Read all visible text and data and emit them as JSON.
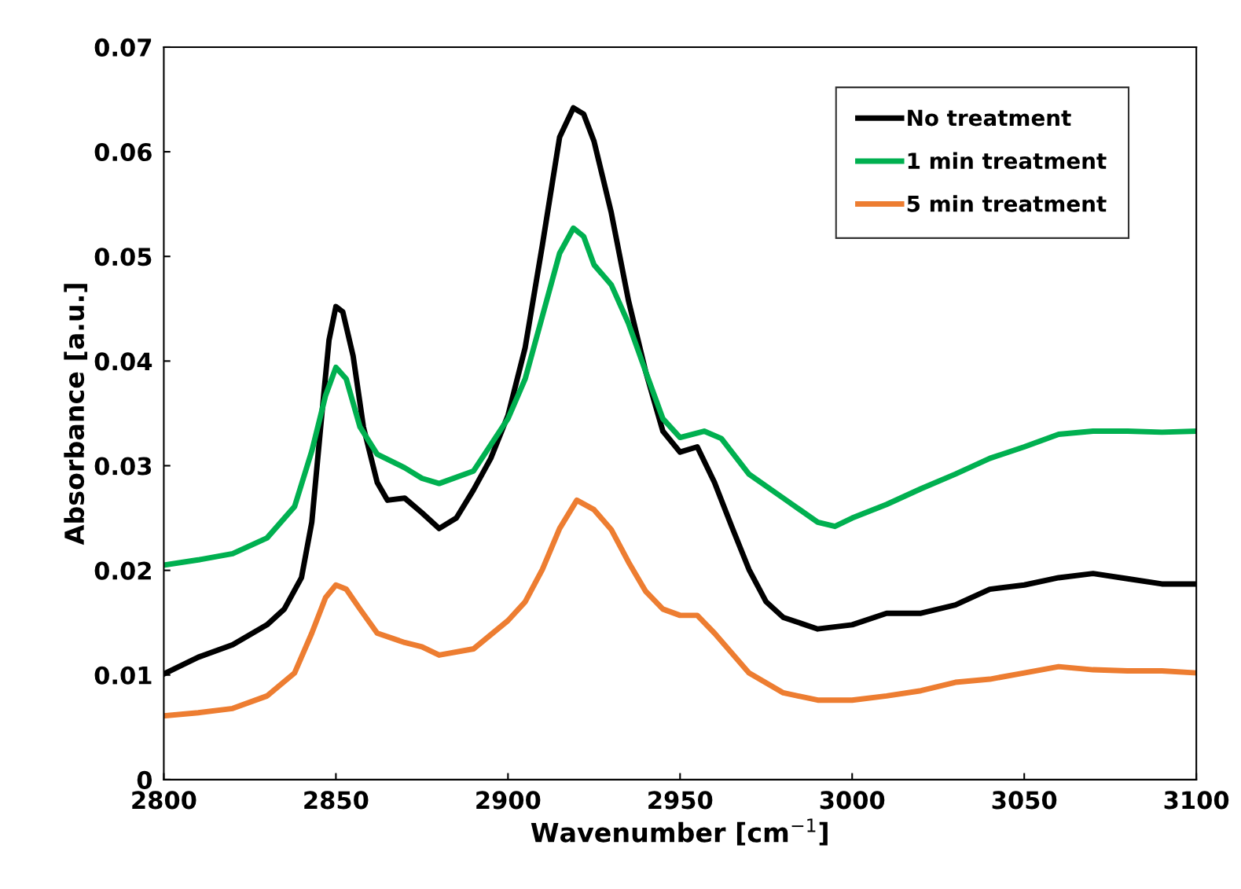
{
  "chart_data": {
    "type": "line",
    "xlabel": "Wavenumber [cm$^{−1}$]",
    "ylabel": "Absorbance [a.u.]",
    "xlim": [
      2800,
      3100
    ],
    "xticks": [
      2800,
      2850,
      2900,
      2950,
      3000,
      3050,
      3100
    ],
    "ylim": [
      0,
      0.07
    ],
    "yticks": [
      0,
      0.01,
      0.02,
      0.03,
      0.04,
      0.05,
      0.06,
      0.07
    ],
    "grid": false,
    "legend": "top right",
    "marker": "none",
    "line_style": "solid",
    "series": [
      {
        "name": "No treatment",
        "color": "#000000",
        "x": [
          2800,
          2810,
          2820,
          2830,
          2835,
          2840,
          2843,
          2846,
          2848,
          2850,
          2852,
          2855,
          2858,
          2862,
          2865,
          2870,
          2875,
          2880,
          2885,
          2890,
          2895,
          2900,
          2905,
          2910,
          2915,
          2919,
          2922,
          2925,
          2930,
          2935,
          2940,
          2945,
          2950,
          2955,
          2960,
          2965,
          2970,
          2975,
          2980,
          2990,
          3000,
          3010,
          3020,
          3030,
          3040,
          3050,
          3060,
          3070,
          3080,
          3090,
          3100
        ],
        "values": [
          0.0101,
          0.0117,
          0.0129,
          0.0148,
          0.0163,
          0.0193,
          0.0246,
          0.0352,
          0.042,
          0.0452,
          0.0447,
          0.0405,
          0.0337,
          0.0284,
          0.0267,
          0.0269,
          0.0255,
          0.024,
          0.025,
          0.0277,
          0.0307,
          0.0348,
          0.0413,
          0.0511,
          0.0614,
          0.0642,
          0.0636,
          0.061,
          0.0542,
          0.0458,
          0.039,
          0.0333,
          0.0313,
          0.0318,
          0.0284,
          0.0242,
          0.0201,
          0.017,
          0.0155,
          0.0144,
          0.0148,
          0.0159,
          0.0159,
          0.0167,
          0.0182,
          0.0186,
          0.0193,
          0.0197,
          0.0192,
          0.0187,
          0.0187
        ]
      },
      {
        "name": "1 min treatment",
        "color": "#00b050",
        "x": [
          2800,
          2810,
          2820,
          2830,
          2838,
          2843,
          2847,
          2850,
          2853,
          2857,
          2862,
          2870,
          2875,
          2880,
          2890,
          2900,
          2905,
          2910,
          2915,
          2919,
          2922,
          2925,
          2930,
          2935,
          2940,
          2945,
          2950,
          2957,
          2962,
          2970,
          2980,
          2990,
          2995,
          3000,
          3010,
          3020,
          3030,
          3040,
          3050,
          3060,
          3070,
          3080,
          3090,
          3100
        ],
        "values": [
          0.0205,
          0.021,
          0.0216,
          0.0231,
          0.0261,
          0.0314,
          0.0367,
          0.0394,
          0.0383,
          0.0337,
          0.0311,
          0.0298,
          0.0288,
          0.0283,
          0.0295,
          0.0345,
          0.0383,
          0.0443,
          0.0503,
          0.0527,
          0.0519,
          0.0492,
          0.0473,
          0.0436,
          0.039,
          0.0345,
          0.0327,
          0.0333,
          0.0326,
          0.0292,
          0.0269,
          0.0246,
          0.0242,
          0.025,
          0.0263,
          0.0278,
          0.0292,
          0.0307,
          0.0318,
          0.033,
          0.0333,
          0.0333,
          0.0332,
          0.0333
        ]
      },
      {
        "name": "5 min treatment",
        "color": "#ed7d31",
        "x": [
          2800,
          2810,
          2820,
          2830,
          2838,
          2843,
          2847,
          2850,
          2853,
          2857,
          2862,
          2870,
          2875,
          2880,
          2890,
          2900,
          2905,
          2910,
          2915,
          2920,
          2925,
          2930,
          2935,
          2940,
          2945,
          2950,
          2955,
          2960,
          2965,
          2970,
          2980,
          2990,
          3000,
          3010,
          3020,
          3030,
          3040,
          3050,
          3060,
          3070,
          3080,
          3090,
          3100
        ],
        "values": [
          0.0061,
          0.0064,
          0.0068,
          0.008,
          0.0102,
          0.014,
          0.0174,
          0.0186,
          0.0182,
          0.0163,
          0.014,
          0.0131,
          0.0127,
          0.0119,
          0.0125,
          0.0152,
          0.017,
          0.0201,
          0.024,
          0.0267,
          0.0258,
          0.0239,
          0.0208,
          0.018,
          0.0163,
          0.0157,
          0.0157,
          0.014,
          0.0121,
          0.0102,
          0.0083,
          0.0076,
          0.0076,
          0.008,
          0.0085,
          0.0093,
          0.0096,
          0.0102,
          0.0108,
          0.0105,
          0.0104,
          0.0104,
          0.0102
        ]
      }
    ]
  }
}
